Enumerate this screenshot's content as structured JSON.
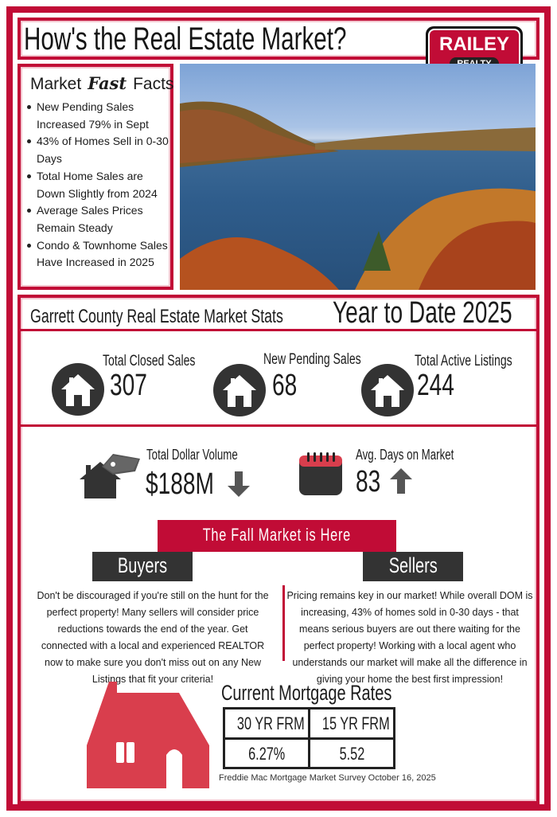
{
  "header": {
    "title": "How's the Real Estate Market?",
    "logo": {
      "line1": "RAILEY",
      "line2": "REALTY"
    }
  },
  "colors": {
    "brand_red": "#c10c36",
    "dark": "#333333",
    "house_red": "#d93e4d"
  },
  "fast_facts": {
    "title_a": "Market",
    "title_b": "Fast",
    "title_c": "Facts",
    "items": [
      "New Pending Sales Increased 79% in Sept",
      "43% of Homes Sell in 0-30 Days",
      "Total Home Sales are Down Slightly from 2024",
      "Average Sales Prices Remain Steady",
      "Condo & Townhome Sales Have Increased in 2025"
    ]
  },
  "stats": {
    "heading": "Garrett County Real Estate Market Stats",
    "period": "Year to Date 2025",
    "items": [
      {
        "label": "Total Closed Sales",
        "value": "307",
        "icon": "house-circle-icon"
      },
      {
        "label": "New Pending Sales",
        "value": "68",
        "icon": "house-circle-icon"
      },
      {
        "label": "Total Active Listings",
        "value": "244",
        "icon": "house-circle-icon"
      }
    ],
    "volume": {
      "label": "Total Dollar Volume",
      "value": "$188M",
      "trend": "down"
    },
    "dom": {
      "label": "Avg. Days on Market",
      "value": "83",
      "trend": "up"
    }
  },
  "fall": {
    "banner": "The Fall Market is Here",
    "buyers": {
      "title": "Buyers",
      "text": "Don't be discouraged if you're still on the hunt for the perfect property! Many sellers will consider price reductions towards the end of the year. Get connected with a local and experienced REALTOR now to make sure you don't miss out on any New Listings that fit your criteria!"
    },
    "sellers": {
      "title": "Sellers",
      "text": "Pricing remains key in our market! While overall DOM is increasing, 43% of homes sold in 0-30 days - that means serious buyers are out there waiting for the perfect property! Working with a local agent who understands our market will make all the difference in giving your home the best first impression!"
    }
  },
  "mortgage": {
    "title": "Current Mortgage Rates",
    "headers": [
      "30 YR FRM",
      "15 YR FRM"
    ],
    "values": [
      "6.27%",
      "5.52"
    ],
    "source": "Freddie Mac Mortgage Market Survey October 16, 2025"
  }
}
